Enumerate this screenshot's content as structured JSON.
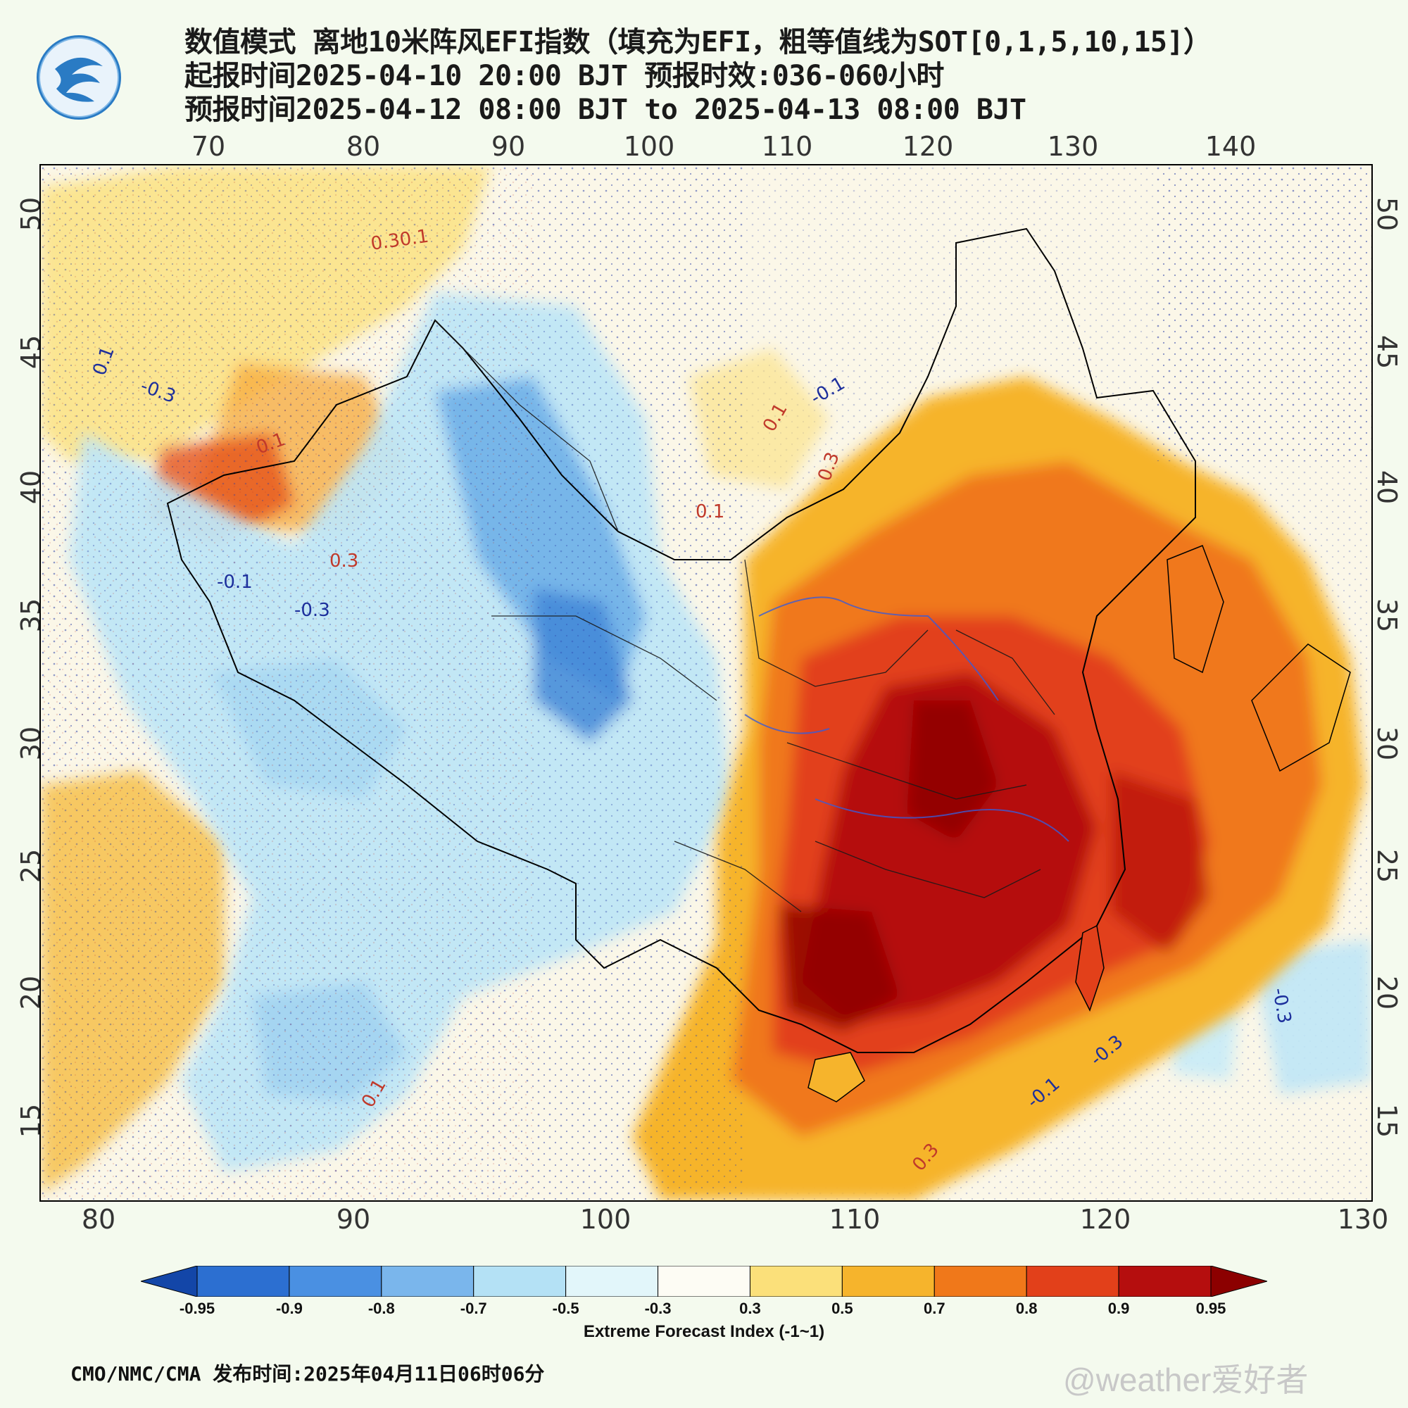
{
  "header": {
    "title_line1": "数值模式 离地10米阵风EFI指数（填充为EFI，粗等值线为SOT[0,1,5,10,15]）",
    "title_line2": "起报时间2025-04-10 20:00 BJT 预报时效:036-060小时",
    "title_line3": "预报时间2025-04-12 08:00 BJT to 2025-04-13 08:00 BJT"
  },
  "axes": {
    "lon_top": [
      "70",
      "80",
      "90",
      "100",
      "110",
      "120",
      "130",
      "140"
    ],
    "lon_bottom": [
      "80",
      "90",
      "100",
      "110",
      "120",
      "130"
    ],
    "lat_left": [
      "50",
      "45",
      "40",
      "35",
      "30",
      "25",
      "20",
      "15"
    ],
    "lat_right": [
      "50",
      "45",
      "40",
      "35",
      "30",
      "25",
      "20",
      "15"
    ]
  },
  "contour_labels": [
    {
      "text": "0.30.1",
      "color": "#c0392b"
    },
    {
      "text": "0.1",
      "color": "#1d2f9c"
    },
    {
      "text": "-0.3",
      "color": "#1d2f9c"
    },
    {
      "text": "0.1",
      "color": "#c0392b"
    },
    {
      "text": "0.3",
      "color": "#c0392b"
    },
    {
      "text": "0.1",
      "color": "#c0392b"
    },
    {
      "text": "-0.1",
      "color": "#1d2f9c"
    },
    {
      "text": "0.1",
      "color": "#c0392b"
    },
    {
      "text": "0.3",
      "color": "#c0392b"
    },
    {
      "text": "-0.3",
      "color": "#1d2f9c"
    },
    {
      "text": "-0.1",
      "color": "#1d2f9c"
    },
    {
      "text": "0.1",
      "color": "#c0392b"
    },
    {
      "text": "-0.3",
      "color": "#1d2f9c"
    },
    {
      "text": "0.3",
      "color": "#c0392b"
    },
    {
      "text": "-0.1",
      "color": "#1d2f9c"
    },
    {
      "text": "-0.3",
      "color": "#1d2f9c"
    }
  ],
  "colorbar": {
    "ticks": [
      "-0.95",
      "-0.9",
      "-0.8",
      "-0.7",
      "-0.5",
      "-0.3",
      "0.3",
      "0.5",
      "0.7",
      "0.8",
      "0.9",
      "0.95"
    ],
    "colors": [
      "#1346a8",
      "#2c6fd1",
      "#4a90e2",
      "#7ab6ec",
      "#b4e1f5",
      "#e2f6fa",
      "#fdfcf4",
      "#fbe07a",
      "#f6b42c",
      "#f0781a",
      "#e2401a",
      "#b50e0e",
      "#8c0000"
    ],
    "title": "Extreme Forecast Index (-1~1)"
  },
  "footer": {
    "source": "CMO/NMC/CMA 发布时间:2025年04月11日06时06分",
    "watermark": "@weather爱好者"
  }
}
